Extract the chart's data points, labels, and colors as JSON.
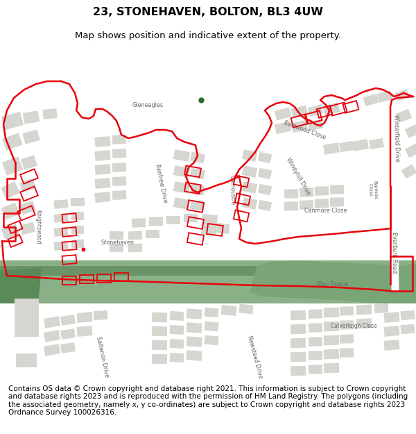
{
  "title": "23, STONEHAVEN, BOLTON, BL3 4UW",
  "subtitle": "Map shows position and indicative extent of the property.",
  "title_fontsize": 11.5,
  "subtitle_fontsize": 9.5,
  "footer_text": "Contains OS data © Crown copyright and database right 2021. This information is subject to Crown copyright and database rights 2023 and is reproduced with the permission of HM Land Registry. The polygons (including the associated geometry, namely x, y co-ordinates) are subject to Crown copyright and database rights 2023 Ordnance Survey 100026316.",
  "footer_fontsize": 7.5,
  "map_bg": "#f0efeb",
  "building_color": "#d6d5cf",
  "road_color": "#ffffff",
  "green_color1": "#7ea87a",
  "green_color2": "#5c7d5a",
  "boundary_color": "#e8000a",
  "boundary_linewidth": 1.8,
  "fig_width": 6.0,
  "fig_height": 6.25,
  "street_label_color": "#666666",
  "street_label_size": 5.8
}
